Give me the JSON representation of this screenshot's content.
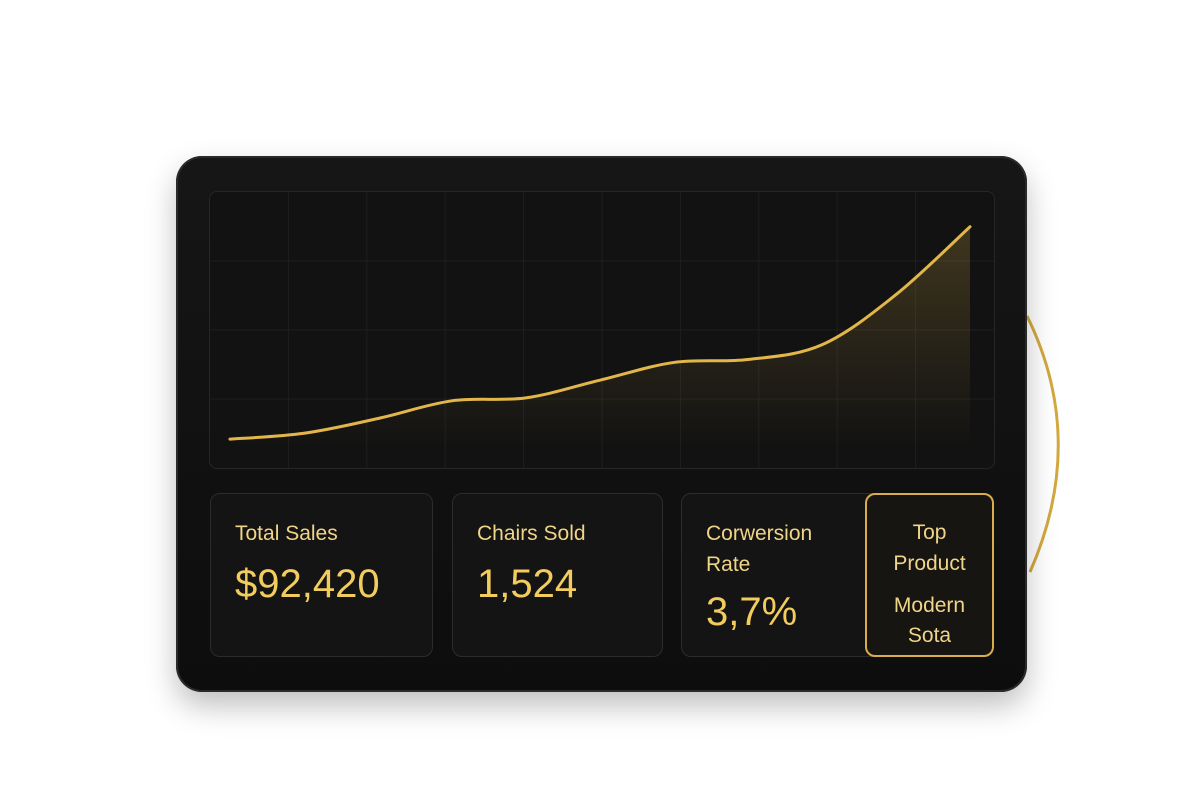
{
  "colors": {
    "accent": "#e2b64a",
    "panel": "#121212",
    "device": "#111111",
    "grid": "#1f1f1f"
  },
  "chart_data": {
    "type": "line",
    "x": [
      0,
      1,
      2,
      3,
      4,
      5,
      6,
      7,
      8,
      9,
      10
    ],
    "series": [
      {
        "values": [
          3,
          5,
          10,
          16,
          17,
          23,
          29,
          30,
          35,
          52,
          75
        ]
      }
    ],
    "ylim": [
      0,
      80
    ],
    "grid": true,
    "legend": "none"
  },
  "cards": {
    "total_sales": {
      "label": "Total Sales",
      "value": "$92,420"
    },
    "chairs_sold": {
      "label": "Chairs Sold",
      "value": "1,524"
    },
    "conversion_rate": {
      "label": "Corwersion\nRate",
      "value": "3,7%"
    },
    "top_product": {
      "label": "Top\nProduct",
      "value": "Modern\nSota"
    }
  }
}
